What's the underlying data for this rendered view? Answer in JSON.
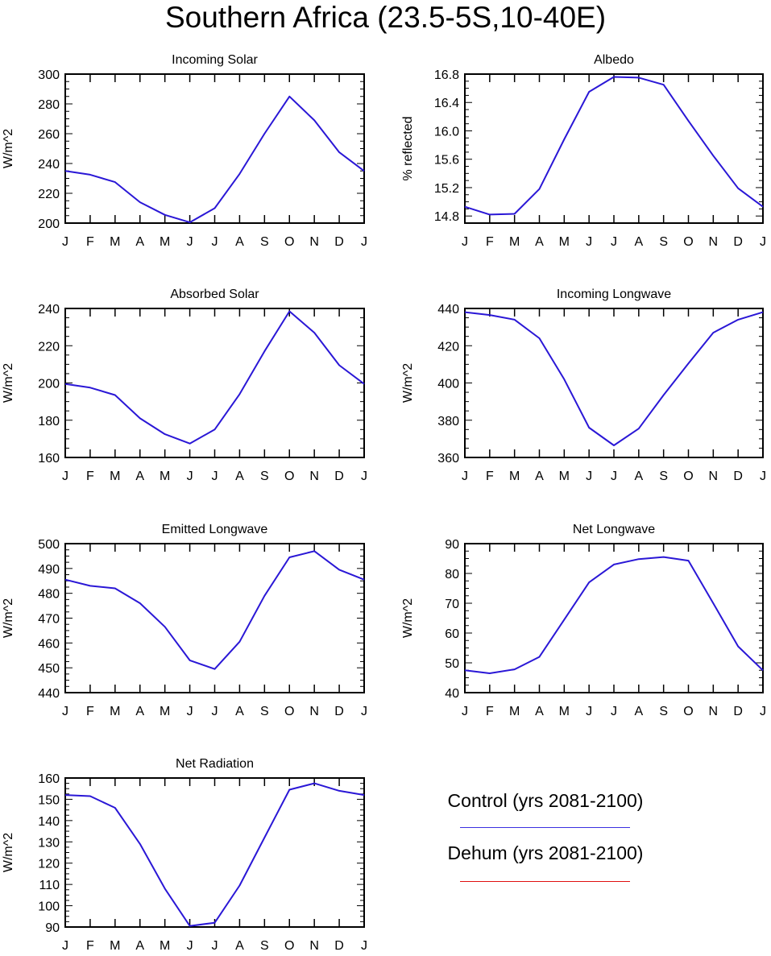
{
  "title": "Southern Africa (23.5-5S,10-40E)",
  "colors": {
    "control": "#2a17d6",
    "dehum": "#e01010",
    "axis": "#000000"
  },
  "legend": [
    {
      "label": "Control (yrs 2081-2100)",
      "color": "#3b2fe0"
    },
    {
      "label": "Dehum (yrs 2081-2100)",
      "color": "#e01010"
    }
  ],
  "chart_data": [
    {
      "type": "line",
      "title": "Incoming Solar",
      "xlabel": "",
      "ylabel": "W/m^2",
      "categories": [
        "J",
        "F",
        "M",
        "A",
        "M",
        "J",
        "J",
        "A",
        "S",
        "O",
        "N",
        "D",
        "J"
      ],
      "ylim": [
        200,
        300
      ],
      "yticks": [
        "200",
        "220",
        "240",
        "260",
        "280",
        "300"
      ],
      "grid": false,
      "series": [
        {
          "values": [
            235,
            232.5,
            227.5,
            214,
            205.5,
            200.5,
            210,
            233,
            260,
            285,
            269,
            247.5,
            235
          ],
          "color": "#2a17d6"
        }
      ]
    },
    {
      "type": "line",
      "title": "Albedo",
      "xlabel": "",
      "ylabel": "% reflected",
      "categories": [
        "J",
        "F",
        "M",
        "A",
        "M",
        "J",
        "J",
        "A",
        "S",
        "O",
        "N",
        "D",
        "J"
      ],
      "ylim": [
        14.7,
        16.8
      ],
      "yticks": [
        "14.8",
        "15.2",
        "15.6",
        "16.0",
        "16.4",
        "16.8"
      ],
      "grid": false,
      "series": [
        {
          "values": [
            14.93,
            14.82,
            14.83,
            15.18,
            15.88,
            16.55,
            16.76,
            16.75,
            16.65,
            16.14,
            15.65,
            15.19,
            14.93
          ],
          "color": "#2a17d6"
        }
      ]
    },
    {
      "type": "line",
      "title": "Absorbed Solar",
      "xlabel": "",
      "ylabel": "W/m^2",
      "categories": [
        "J",
        "F",
        "M",
        "A",
        "M",
        "J",
        "J",
        "A",
        "S",
        "O",
        "N",
        "D",
        "J"
      ],
      "ylim": [
        160,
        240
      ],
      "yticks": [
        "160",
        "180",
        "200",
        "220",
        "240"
      ],
      "grid": false,
      "series": [
        {
          "values": [
            199.5,
            197.5,
            193.5,
            181,
            172.5,
            167.5,
            175,
            194,
            217,
            238.5,
            227,
            209.5,
            199.5
          ],
          "color": "#2a17d6"
        }
      ]
    },
    {
      "type": "line",
      "title": "Incoming Longwave",
      "xlabel": "",
      "ylabel": "W/m^2",
      "categories": [
        "J",
        "F",
        "M",
        "A",
        "M",
        "J",
        "J",
        "A",
        "S",
        "O",
        "N",
        "D",
        "J"
      ],
      "ylim": [
        360,
        440
      ],
      "yticks": [
        "360",
        "380",
        "400",
        "420",
        "440"
      ],
      "grid": false,
      "series": [
        {
          "values": [
            438,
            436.5,
            434,
            424,
            402,
            376,
            366.5,
            375.5,
            393.5,
            410.5,
            427,
            434,
            438
          ],
          "color": "#2a17d6"
        }
      ]
    },
    {
      "type": "line",
      "title": "Emitted Longwave",
      "xlabel": "",
      "ylabel": "W/m^2",
      "categories": [
        "J",
        "F",
        "M",
        "A",
        "M",
        "J",
        "J",
        "A",
        "S",
        "O",
        "N",
        "D",
        "J"
      ],
      "ylim": [
        440,
        500
      ],
      "yticks": [
        "440",
        "450",
        "460",
        "470",
        "480",
        "490",
        "500"
      ],
      "grid": false,
      "series": [
        {
          "values": [
            485.5,
            483,
            482,
            476,
            466.5,
            453,
            449.5,
            460.5,
            479,
            494.5,
            497,
            489.5,
            485.5
          ],
          "color": "#2a17d6"
        }
      ]
    },
    {
      "type": "line",
      "title": "Net Longwave",
      "xlabel": "",
      "ylabel": "W/m^2",
      "categories": [
        "J",
        "F",
        "M",
        "A",
        "M",
        "J",
        "J",
        "A",
        "S",
        "O",
        "N",
        "D",
        "J"
      ],
      "ylim": [
        40,
        90
      ],
      "yticks": [
        "40",
        "50",
        "60",
        "70",
        "80",
        "90"
      ],
      "grid": false,
      "series": [
        {
          "values": [
            47.5,
            46.5,
            47.8,
            52,
            64.5,
            77,
            83,
            84.8,
            85.5,
            84.3,
            70,
            55.5,
            47.5
          ],
          "color": "#2a17d6"
        }
      ]
    },
    {
      "type": "line",
      "title": "Net Radiation",
      "xlabel": "",
      "ylabel": "W/m^2",
      "categories": [
        "J",
        "F",
        "M",
        "A",
        "M",
        "J",
        "J",
        "A",
        "S",
        "O",
        "N",
        "D",
        "J"
      ],
      "ylim": [
        90,
        160
      ],
      "yticks": [
        "90",
        "100",
        "110",
        "120",
        "130",
        "140",
        "150",
        "160"
      ],
      "grid": false,
      "series": [
        {
          "values": [
            152,
            151.5,
            146,
            129,
            108,
            90.5,
            92,
            109.5,
            132,
            154.5,
            157.5,
            154,
            152
          ],
          "color": "#2a17d6"
        }
      ]
    }
  ]
}
